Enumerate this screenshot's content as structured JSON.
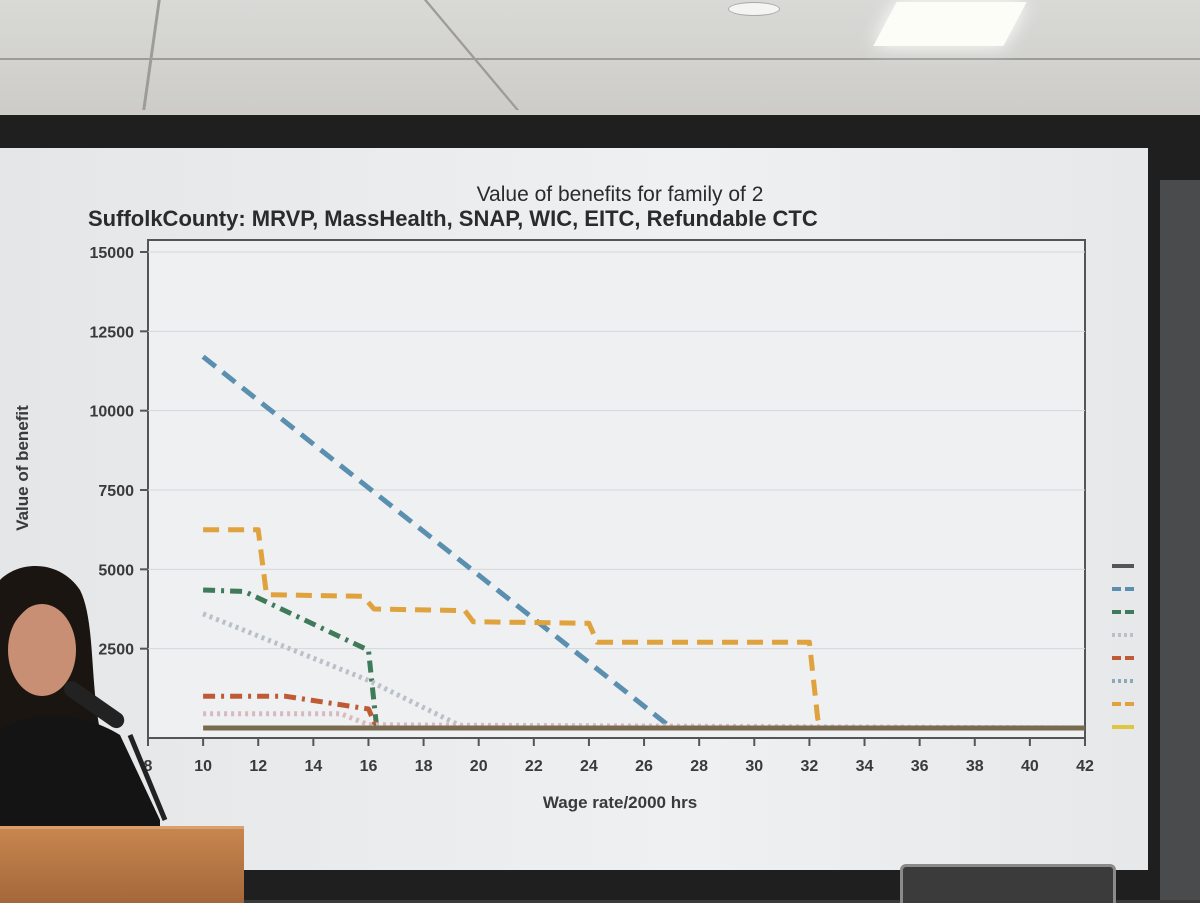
{
  "chart_data": {
    "type": "line",
    "title": "Value of benefits for family of 2",
    "subtitle": "SuffolkCounty: MRVP, MassHealth, SNAP, WIC, EITC, Refundable CTC",
    "xlabel": "Wage rate/2000 hrs",
    "ylabel": "Value of benefit",
    "xlim": [
      8,
      42
    ],
    "ylim": [
      0,
      15000
    ],
    "x_ticks": [
      "8",
      "10",
      "12",
      "14",
      "16",
      "18",
      "20",
      "22",
      "24",
      "26",
      "28",
      "30",
      "32",
      "34",
      "36",
      "38",
      "40",
      "42"
    ],
    "y_ticks": [
      "15000",
      "12500",
      "10000",
      "7500",
      "5000",
      "2500"
    ],
    "grid": true,
    "legend": "right (entry labels cut off)",
    "series": [
      {
        "color": "#5b8fb0",
        "dash": "long dash",
        "points": [
          [
            10,
            11700
          ],
          [
            27,
            0
          ],
          [
            42,
            0
          ]
        ]
      },
      {
        "color": "#e0a23c",
        "dash": "long dash",
        "points": [
          [
            10,
            6250
          ],
          [
            12,
            6250
          ],
          [
            12.3,
            4200
          ],
          [
            15.8,
            4150
          ],
          [
            16.2,
            3750
          ],
          [
            19.5,
            3700
          ],
          [
            19.8,
            3350
          ],
          [
            24,
            3300
          ],
          [
            24.3,
            2700
          ],
          [
            32,
            2700
          ],
          [
            32.3,
            300
          ],
          [
            32.4,
            0
          ],
          [
            42,
            0
          ]
        ]
      },
      {
        "color": "#3f7a5a",
        "dash": "dash-dot",
        "points": [
          [
            10,
            4350
          ],
          [
            11.5,
            4300
          ],
          [
            16,
            2450
          ],
          [
            16.3,
            0
          ],
          [
            42,
            0
          ]
        ]
      },
      {
        "color": "#b9c0c7",
        "dash": "dotted",
        "points": [
          [
            10,
            3600
          ],
          [
            16,
            1500
          ],
          [
            19.5,
            0
          ],
          [
            42,
            0
          ]
        ]
      },
      {
        "color": "#c05a35",
        "dash": "dash-dot",
        "points": [
          [
            10,
            1000
          ],
          [
            13,
            1000
          ],
          [
            16,
            600
          ],
          [
            16.3,
            0
          ],
          [
            42,
            0
          ]
        ]
      },
      {
        "color": "#d8b9be",
        "dash": "dotted",
        "points": [
          [
            10,
            450
          ],
          [
            15,
            450
          ],
          [
            16,
            100
          ],
          [
            42,
            0
          ]
        ]
      },
      {
        "color": "#7a6a50",
        "dash": "solid",
        "points": [
          [
            10,
            0
          ],
          [
            42,
            0
          ]
        ]
      }
    ],
    "legend_swatches": [
      {
        "color": "#555555",
        "dash": "solid"
      },
      {
        "color": "#5b8fb0",
        "dash": "long dash"
      },
      {
        "color": "#3f7a5a",
        "dash": "dash-dot"
      },
      {
        "color": "#b9c0c7",
        "dash": "dotted"
      },
      {
        "color": "#c05a35",
        "dash": "dash-dot"
      },
      {
        "color": "#8aa8b8",
        "dash": "dotted"
      },
      {
        "color": "#e0a23c",
        "dash": "long dash"
      },
      {
        "color": "#e0c640",
        "dash": "solid"
      }
    ]
  }
}
